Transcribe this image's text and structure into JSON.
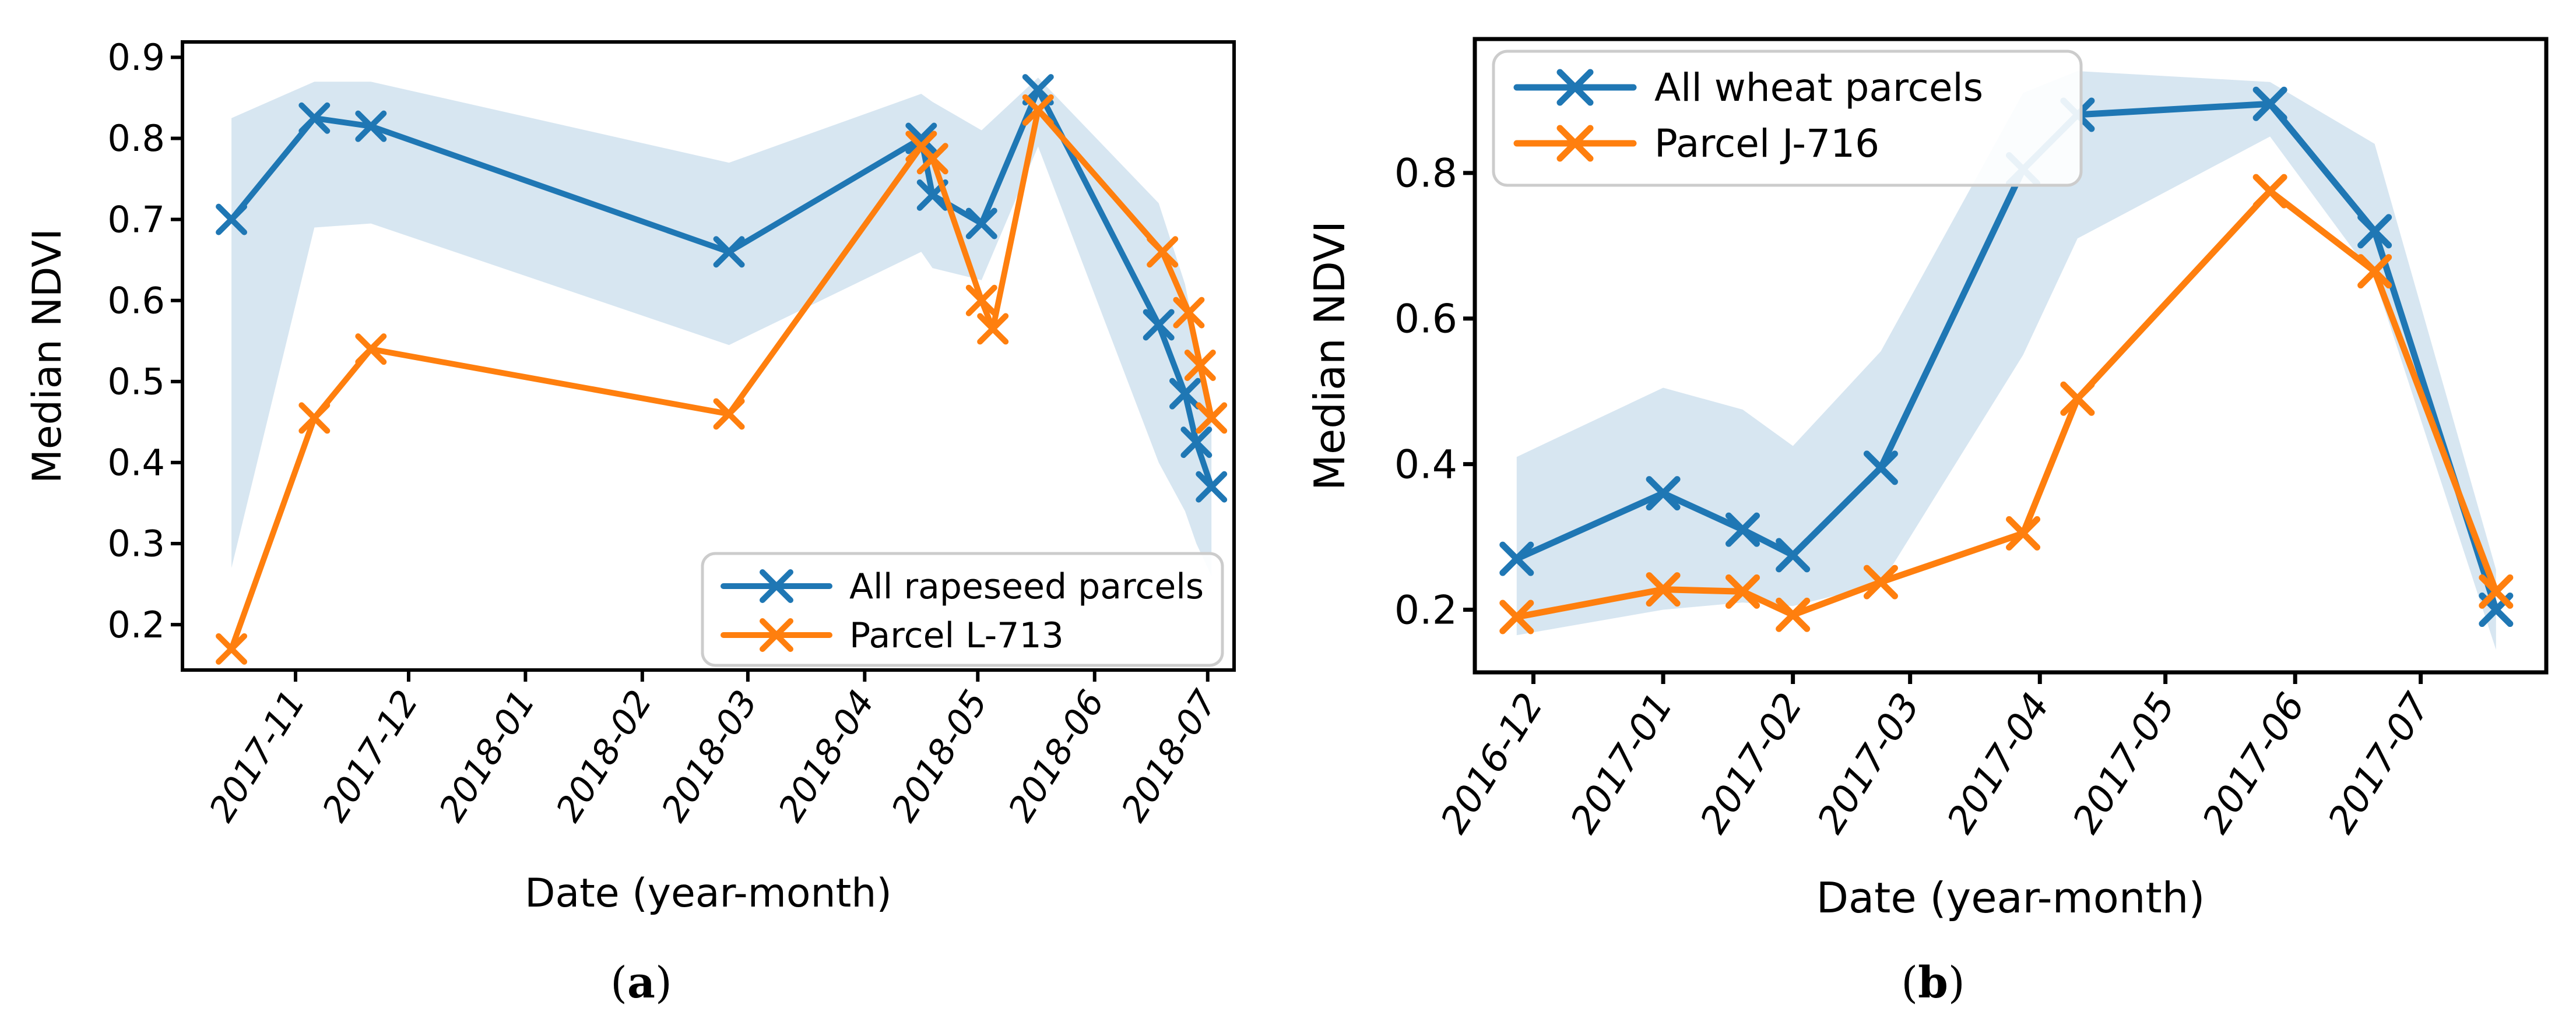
{
  "page": {
    "background": "#ffffff"
  },
  "colors": {
    "blue": "#1f77b4",
    "orange": "#ff7f0e",
    "band_fill": "rgba(31,119,180,0.18)",
    "axis": "#000000",
    "legend_border": "#cccccc",
    "legend_fill": "rgba(255,255,255,0.9)"
  },
  "chart_data": [
    {
      "id": "a",
      "type": "line",
      "title": "",
      "xlabel": "Date (year-month)",
      "ylabel": "Median NDVI",
      "caption_parts": {
        "prefix": "(",
        "letter": "a",
        "suffix": ")"
      },
      "grid": false,
      "xlim": [
        "2017-10-02",
        "2018-07-08"
      ],
      "ylim": [
        0.144,
        0.919
      ],
      "y_ticks": [
        0.2,
        0.3,
        0.4,
        0.5,
        0.6,
        0.7,
        0.8,
        0.9
      ],
      "y_tick_labels": [
        "0.2",
        "0.3",
        "0.4",
        "0.5",
        "0.6",
        "0.7",
        "0.8",
        "0.9"
      ],
      "x_tick_dates": [
        "2017-11-01",
        "2017-12-01",
        "2018-01-01",
        "2018-02-01",
        "2018-03-01",
        "2018-04-01",
        "2018-05-01",
        "2018-06-01",
        "2018-07-01"
      ],
      "x_tick_labels": [
        "2017-11",
        "2017-12",
        "2018-01",
        "2018-02",
        "2018-03",
        "2018-04",
        "2018-05",
        "2018-06",
        "2018-07"
      ],
      "legend": {
        "position": "lower right",
        "entries": [
          {
            "label": "All rapeseed parcels",
            "color": "#1f77b4"
          },
          {
            "label": "Parcel L-713",
            "color": "#ff7f0e"
          }
        ]
      },
      "series": [
        {
          "name": "All rapeseed parcels",
          "color": "#1f77b4",
          "marker": "x",
          "x": [
            "2017-10-15",
            "2017-11-06",
            "2017-11-21",
            "2018-02-24",
            "2018-04-16",
            "2018-04-19",
            "2018-05-02",
            "2018-05-17",
            "2018-06-18",
            "2018-06-25",
            "2018-06-28",
            "2018-07-02"
          ],
          "y": [
            0.7,
            0.825,
            0.815,
            0.66,
            0.8,
            0.73,
            0.695,
            0.86,
            0.57,
            0.485,
            0.425,
            0.37
          ]
        },
        {
          "name": "Parcel L-713",
          "color": "#ff7f0e",
          "marker": "x",
          "x": [
            "2017-10-15",
            "2017-11-06",
            "2017-11-21",
            "2018-02-24",
            "2018-04-16",
            "2018-04-19",
            "2018-05-02",
            "2018-05-05",
            "2018-05-17",
            "2018-06-19",
            "2018-06-26",
            "2018-06-29",
            "2018-07-02"
          ],
          "y": [
            0.17,
            0.455,
            0.54,
            0.46,
            0.79,
            0.775,
            0.6,
            0.565,
            0.835,
            0.66,
            0.585,
            0.52,
            0.455
          ]
        }
      ],
      "band": {
        "around_series": "All rapeseed parcels",
        "color": "rgba(31,119,180,0.18)",
        "x": [
          "2017-10-15",
          "2017-11-06",
          "2017-11-21",
          "2018-02-24",
          "2018-04-16",
          "2018-04-19",
          "2018-05-02",
          "2018-05-17",
          "2018-06-18",
          "2018-06-25",
          "2018-06-28",
          "2018-07-02"
        ],
        "upper": [
          0.825,
          0.87,
          0.87,
          0.77,
          0.855,
          0.845,
          0.81,
          0.875,
          0.72,
          0.62,
          0.55,
          0.45
        ],
        "lower": [
          0.27,
          0.69,
          0.695,
          0.545,
          0.66,
          0.64,
          0.625,
          0.79,
          0.4,
          0.34,
          0.3,
          0.26
        ]
      }
    },
    {
      "id": "b",
      "type": "line",
      "title": "",
      "xlabel": "Date (year-month)",
      "ylabel": "Median NDVI",
      "caption_parts": {
        "prefix": "(",
        "letter": "b",
        "suffix": ")"
      },
      "grid": false,
      "xlim": [
        "2016-11-17",
        "2017-07-31"
      ],
      "ylim": [
        0.114,
        0.984
      ],
      "y_ticks": [
        0.2,
        0.4,
        0.6,
        0.8
      ],
      "y_tick_labels": [
        "0.2",
        "0.4",
        "0.6",
        "0.8"
      ],
      "x_tick_dates": [
        "2016-12-01",
        "2017-01-01",
        "2017-02-01",
        "2017-03-01",
        "2017-04-01",
        "2017-05-01",
        "2017-06-01",
        "2017-07-01"
      ],
      "x_tick_labels": [
        "2016-12",
        "2017-01",
        "2017-02",
        "2017-03",
        "2017-04",
        "2017-05",
        "2017-06",
        "2017-07"
      ],
      "legend": {
        "position": "upper left",
        "entries": [
          {
            "label": "All wheat parcels",
            "color": "#1f77b4"
          },
          {
            "label": "Parcel J-716",
            "color": "#ff7f0e"
          }
        ]
      },
      "series": [
        {
          "name": "All wheat parcels",
          "color": "#1f77b4",
          "marker": "x",
          "x": [
            "2016-11-27",
            "2017-01-01",
            "2017-01-20",
            "2017-02-01",
            "2017-02-22",
            "2017-03-28",
            "2017-04-10",
            "2017-05-26",
            "2017-06-20",
            "2017-07-19"
          ],
          "y": [
            0.27,
            0.36,
            0.31,
            0.275,
            0.395,
            0.805,
            0.88,
            0.895,
            0.72,
            0.2
          ]
        },
        {
          "name": "Parcel J-716",
          "color": "#ff7f0e",
          "marker": "x",
          "x": [
            "2016-11-27",
            "2017-01-01",
            "2017-01-20",
            "2017-02-01",
            "2017-02-22",
            "2017-03-28",
            "2017-04-10",
            "2017-05-26",
            "2017-06-20",
            "2017-07-19"
          ],
          "y": [
            0.19,
            0.228,
            0.225,
            0.193,
            0.238,
            0.305,
            0.49,
            0.775,
            0.665,
            0.225
          ]
        }
      ],
      "band": {
        "around_series": "All wheat parcels",
        "color": "rgba(31,119,180,0.18)",
        "x": [
          "2016-11-27",
          "2017-01-01",
          "2017-01-20",
          "2017-02-01",
          "2017-02-22",
          "2017-03-28",
          "2017-04-10",
          "2017-05-26",
          "2017-06-20",
          "2017-07-19"
        ],
        "upper": [
          0.41,
          0.505,
          0.475,
          0.425,
          0.555,
          0.91,
          0.94,
          0.925,
          0.84,
          0.255
        ],
        "lower": [
          0.165,
          0.2,
          0.21,
          0.205,
          0.235,
          0.55,
          0.71,
          0.85,
          0.655,
          0.145
        ]
      }
    }
  ]
}
